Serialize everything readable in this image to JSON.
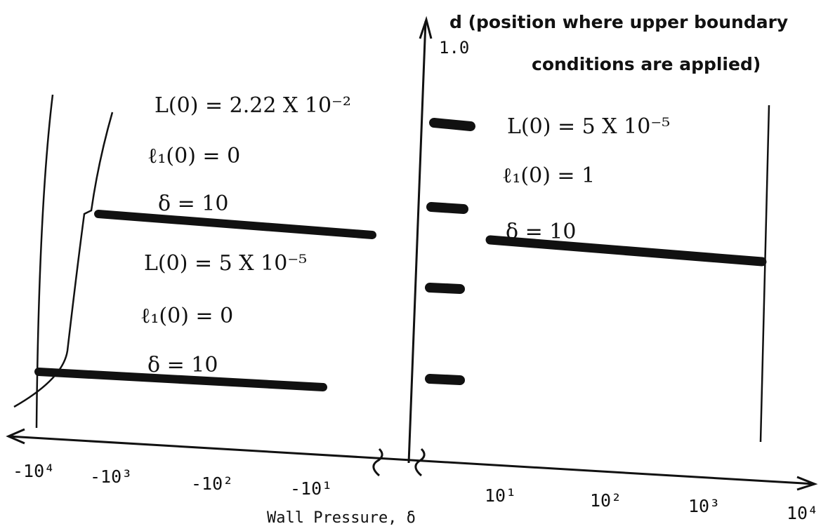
{
  "y_axis": {
    "label_line1": "d (position where upper boundary",
    "label_line2": "conditions are applied)",
    "tick": "1.0"
  },
  "x_axis": {
    "label": "Wall Pressure, δ",
    "left_ticks": [
      "-10⁴",
      "-10³",
      "-10²",
      "-10¹"
    ],
    "right_ticks": [
      "10¹",
      "10²",
      "10³",
      "10⁴"
    ]
  },
  "annotations": {
    "left_top": [
      "L(0) = 2.22 X 10⁻²",
      "ℓ₁(0) = 0",
      "δ = 10"
    ],
    "left_bottom": [
      "L(0) = 5 X 10⁻⁵",
      "ℓ₁(0) = 0",
      "δ = 10"
    ],
    "right": [
      "L(0) = 5 X 10⁻⁵",
      "ℓ₁(0) = 1",
      "δ = 10"
    ]
  }
}
